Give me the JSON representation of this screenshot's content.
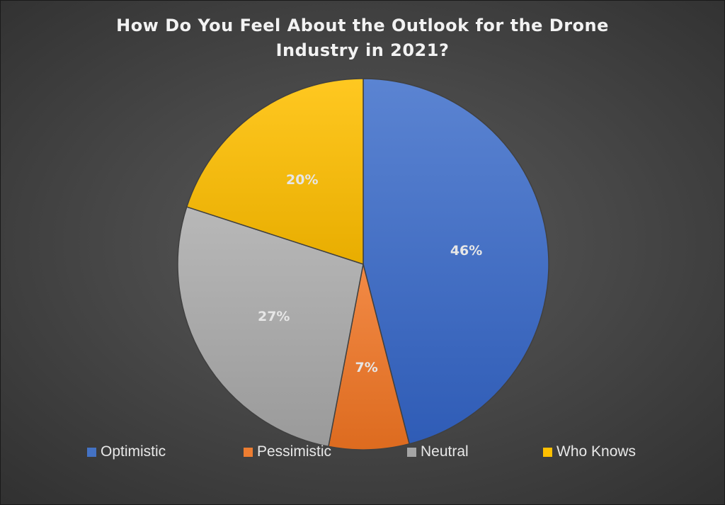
{
  "chart_data": {
    "type": "pie",
    "title": "How Do You Feel About the Outlook for the Drone Industry in 2021?",
    "categories": [
      "Optimistic",
      "Pessimistic",
      "Neutral",
      "Who Knows"
    ],
    "values": [
      46,
      7,
      27,
      20
    ],
    "data_labels": [
      "46%",
      "7%",
      "27%",
      "20%"
    ],
    "colors": [
      "#4472c4",
      "#ed7d31",
      "#a5a5a5",
      "#ffc000"
    ],
    "legend": "bottom",
    "start_angle": "top, clockwise"
  }
}
